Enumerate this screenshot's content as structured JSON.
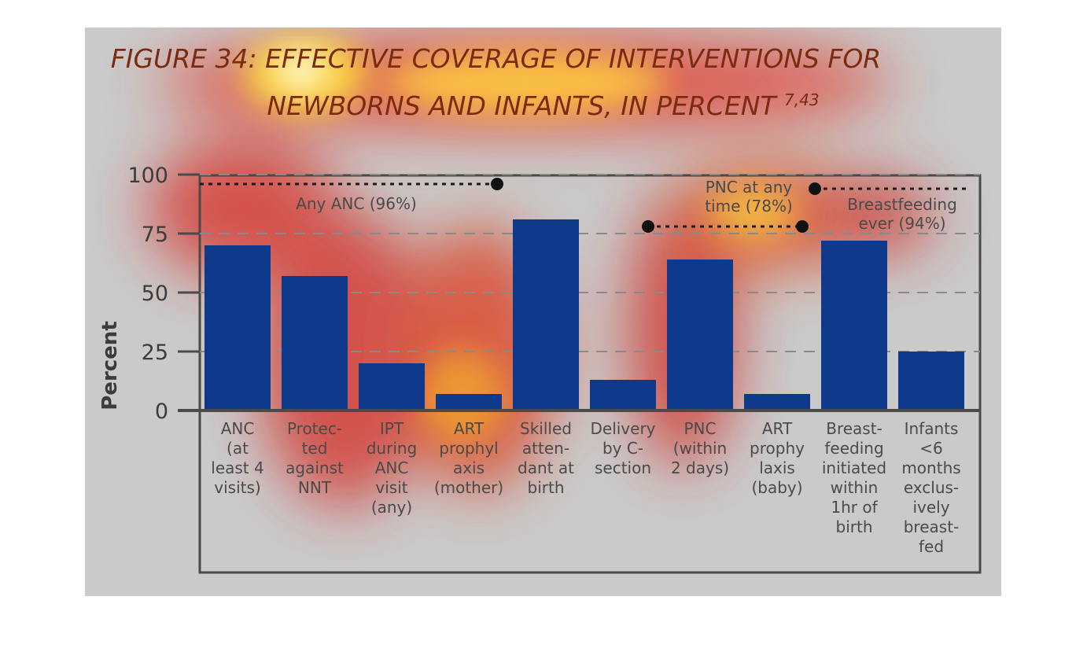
{
  "figure": {
    "title_line1": "FIGURE 34: EFFECTIVE COVERAGE OF INTERVENTIONS FOR",
    "title_line2": "NEWBORNS AND INFANTS, IN PERCENT",
    "title_sup": "7,43"
  },
  "chart_data": {
    "type": "bar",
    "ylabel": "Percent",
    "ylim": [
      0,
      100
    ],
    "yticks": [
      0,
      25,
      50,
      75,
      100
    ],
    "grid": "dashed horizontal",
    "categories": [
      [
        "ANC",
        "(at",
        "least 4",
        "visits)"
      ],
      [
        "Protec-",
        "ted",
        "against",
        "NNT"
      ],
      [
        "IPT",
        "during",
        "ANC",
        "visit",
        "(any)"
      ],
      [
        "ART",
        "prophyl",
        "axis",
        "(mother)"
      ],
      [
        "Skilled",
        "atten-",
        "dant at",
        "birth"
      ],
      [
        "Delivery",
        "by C-",
        "section"
      ],
      [
        "PNC",
        "(within",
        "2 days)"
      ],
      [
        "ART",
        "prophy",
        "laxis",
        "(baby)"
      ],
      [
        "Breast-",
        "feeding",
        "initiated",
        "within",
        "1hr of",
        "birth"
      ],
      [
        "Infants",
        "<6",
        "months",
        "exclus-",
        "ively",
        "breast-",
        "fed"
      ]
    ],
    "values": [
      70,
      57,
      20,
      7,
      81,
      13,
      64,
      7,
      72,
      25
    ],
    "bar_color": "#0f3a8c",
    "reference_lines": [
      {
        "label": [
          "Any ANC (96%)"
        ],
        "value": 96,
        "from_index": 0,
        "to_index": 3,
        "dot": "end"
      },
      {
        "label": [
          "PNC at any",
          "time (78%)"
        ],
        "value": 78,
        "from_index": 5,
        "to_index": 7,
        "dot": "both"
      },
      {
        "label": [
          "Breastfeeding",
          "ever (94%)"
        ],
        "value": 94,
        "from_index": 7,
        "to_index": 9,
        "dot": "start"
      }
    ]
  }
}
